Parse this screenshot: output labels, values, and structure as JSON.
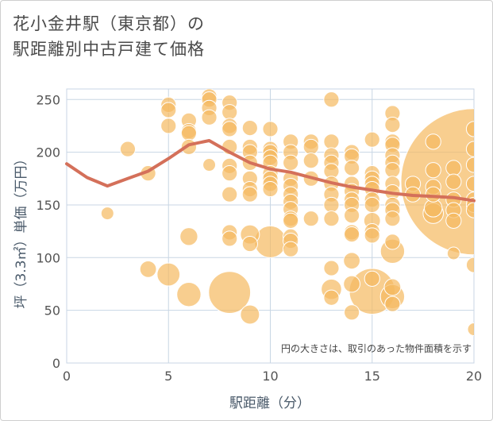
{
  "title_line1": "花小金井駅（東京都）の",
  "title_line2": "駅距離別中古戸建て価格",
  "chart_data": {
    "type": "scatter",
    "xlabel": "駅距離（分）",
    "ylabel": "坪（3.3㎡）単価（万円）",
    "annotation": "円の大きさは、取引のあった物件面積を示す",
    "xlim": [
      0,
      20
    ],
    "ylim": [
      0,
      260
    ],
    "xticks": [
      0,
      5,
      10,
      15,
      20
    ],
    "yticks": [
      0,
      50,
      100,
      150,
      200,
      250
    ],
    "grid": true,
    "colors": {
      "bubble": "#f5b960",
      "line": "#d4705a",
      "grid": "#c8d6e4"
    },
    "trend_line": {
      "x": [
        0,
        1,
        2,
        3,
        4,
        5,
        6,
        7,
        8,
        9,
        10,
        11,
        12,
        13,
        14,
        15,
        16,
        17,
        18,
        19,
        20
      ],
      "y": [
        189,
        176,
        168,
        175,
        182,
        194,
        207,
        211,
        200,
        190,
        184,
        181,
        176,
        171,
        167,
        164,
        161,
        159,
        158,
        157,
        154
      ]
    },
    "points": [
      {
        "x": 2,
        "y": 142,
        "s": 1
      },
      {
        "x": 3,
        "y": 203,
        "s": 1.2
      },
      {
        "x": 4,
        "y": 180,
        "s": 1.2
      },
      {
        "x": 4,
        "y": 89,
        "s": 1.3
      },
      {
        "x": 5,
        "y": 245,
        "s": 1.2
      },
      {
        "x": 5,
        "y": 240,
        "s": 1.2
      },
      {
        "x": 5,
        "y": 225,
        "s": 1.2
      },
      {
        "x": 5,
        "y": 84,
        "s": 1.8
      },
      {
        "x": 6,
        "y": 230,
        "s": 1.2
      },
      {
        "x": 6,
        "y": 220,
        "s": 1.2
      },
      {
        "x": 6,
        "y": 218,
        "s": 1.2
      },
      {
        "x": 6,
        "y": 205,
        "s": 1.2
      },
      {
        "x": 6,
        "y": 120,
        "s": 1.4
      },
      {
        "x": 6,
        "y": 65,
        "s": 1.9
      },
      {
        "x": 7,
        "y": 253,
        "s": 1.2
      },
      {
        "x": 7,
        "y": 250,
        "s": 1.2
      },
      {
        "x": 7,
        "y": 242,
        "s": 1.2
      },
      {
        "x": 7,
        "y": 233,
        "s": 1.2
      },
      {
        "x": 7,
        "y": 188,
        "s": 1
      },
      {
        "x": 8,
        "y": 247,
        "s": 1.2
      },
      {
        "x": 8,
        "y": 238,
        "s": 1.2
      },
      {
        "x": 8,
        "y": 225,
        "s": 1.2
      },
      {
        "x": 8,
        "y": 222,
        "s": 1.2
      },
      {
        "x": 8,
        "y": 205,
        "s": 1.2
      },
      {
        "x": 8,
        "y": 187,
        "s": 1.2
      },
      {
        "x": 8,
        "y": 180,
        "s": 1.2
      },
      {
        "x": 8,
        "y": 160,
        "s": 1.2
      },
      {
        "x": 8,
        "y": 124,
        "s": 1.2
      },
      {
        "x": 8,
        "y": 118,
        "s": 1.2
      },
      {
        "x": 8,
        "y": 67,
        "s": 3.3
      },
      {
        "x": 9,
        "y": 223,
        "s": 1.2
      },
      {
        "x": 9,
        "y": 205,
        "s": 1.2
      },
      {
        "x": 9,
        "y": 200,
        "s": 1.2
      },
      {
        "x": 9,
        "y": 190,
        "s": 1.2
      },
      {
        "x": 9,
        "y": 175,
        "s": 1.2
      },
      {
        "x": 9,
        "y": 165,
        "s": 1.2
      },
      {
        "x": 9,
        "y": 160,
        "s": 1.2
      },
      {
        "x": 9,
        "y": 122,
        "s": 1.5
      },
      {
        "x": 9,
        "y": 113,
        "s": 1.2
      },
      {
        "x": 9,
        "y": 46,
        "s": 1.5
      },
      {
        "x": 10,
        "y": 222,
        "s": 1.2
      },
      {
        "x": 10,
        "y": 203,
        "s": 1.2
      },
      {
        "x": 10,
        "y": 200,
        "s": 1.2
      },
      {
        "x": 10,
        "y": 195,
        "s": 1.2
      },
      {
        "x": 10,
        "y": 190,
        "s": 1.2
      },
      {
        "x": 10,
        "y": 180,
        "s": 1.2
      },
      {
        "x": 10,
        "y": 175,
        "s": 1.2
      },
      {
        "x": 10,
        "y": 170,
        "s": 1.2
      },
      {
        "x": 10,
        "y": 165,
        "s": 1.2
      },
      {
        "x": 10,
        "y": 115,
        "s": 2.5
      },
      {
        "x": 11,
        "y": 210,
        "s": 1.2
      },
      {
        "x": 11,
        "y": 200,
        "s": 1.2
      },
      {
        "x": 11,
        "y": 190,
        "s": 1.2
      },
      {
        "x": 11,
        "y": 175,
        "s": 1.2
      },
      {
        "x": 11,
        "y": 168,
        "s": 1.2
      },
      {
        "x": 11,
        "y": 160,
        "s": 1.2
      },
      {
        "x": 11,
        "y": 153,
        "s": 1.2
      },
      {
        "x": 11,
        "y": 146,
        "s": 1.2
      },
      {
        "x": 11,
        "y": 137,
        "s": 1.2
      },
      {
        "x": 11,
        "y": 135,
        "s": 1.2
      },
      {
        "x": 11,
        "y": 120,
        "s": 1.2
      },
      {
        "x": 11,
        "y": 116,
        "s": 1.2
      },
      {
        "x": 11,
        "y": 108,
        "s": 1.2
      },
      {
        "x": 12,
        "y": 210,
        "s": 1.2
      },
      {
        "x": 12,
        "y": 205,
        "s": 1.2
      },
      {
        "x": 12,
        "y": 192,
        "s": 1.2
      },
      {
        "x": 12,
        "y": 175,
        "s": 1.2
      },
      {
        "x": 12,
        "y": 137,
        "s": 1.2
      },
      {
        "x": 13,
        "y": 250,
        "s": 1.2
      },
      {
        "x": 13,
        "y": 210,
        "s": 1.2
      },
      {
        "x": 13,
        "y": 197,
        "s": 1.2
      },
      {
        "x": 13,
        "y": 190,
        "s": 1.2
      },
      {
        "x": 13,
        "y": 182,
        "s": 1.2
      },
      {
        "x": 13,
        "y": 170,
        "s": 1.2
      },
      {
        "x": 13,
        "y": 160,
        "s": 1.2
      },
      {
        "x": 13,
        "y": 150,
        "s": 1.2
      },
      {
        "x": 13,
        "y": 137,
        "s": 1.2
      },
      {
        "x": 13,
        "y": 90,
        "s": 1.2
      },
      {
        "x": 13,
        "y": 70,
        "s": 1.6
      },
      {
        "x": 13,
        "y": 62,
        "s": 1.2
      },
      {
        "x": 14,
        "y": 200,
        "s": 1.2
      },
      {
        "x": 14,
        "y": 196,
        "s": 1.2
      },
      {
        "x": 14,
        "y": 185,
        "s": 1.2
      },
      {
        "x": 14,
        "y": 170,
        "s": 1.2
      },
      {
        "x": 14,
        "y": 163,
        "s": 1.2
      },
      {
        "x": 14,
        "y": 155,
        "s": 1.2
      },
      {
        "x": 14,
        "y": 150,
        "s": 1.2
      },
      {
        "x": 14,
        "y": 140,
        "s": 1.2
      },
      {
        "x": 14,
        "y": 124,
        "s": 1.2
      },
      {
        "x": 14,
        "y": 122,
        "s": 1.2
      },
      {
        "x": 14,
        "y": 97,
        "s": 1.3
      },
      {
        "x": 14,
        "y": 75,
        "s": 1.3
      },
      {
        "x": 14,
        "y": 48,
        "s": 1.2
      },
      {
        "x": 15,
        "y": 212,
        "s": 1.2
      },
      {
        "x": 15,
        "y": 180,
        "s": 1.2
      },
      {
        "x": 15,
        "y": 175,
        "s": 1.2
      },
      {
        "x": 15,
        "y": 170,
        "s": 1.2
      },
      {
        "x": 15,
        "y": 165,
        "s": 1.2
      },
      {
        "x": 15,
        "y": 155,
        "s": 1.2
      },
      {
        "x": 15,
        "y": 150,
        "s": 1.2
      },
      {
        "x": 15,
        "y": 135,
        "s": 1.3
      },
      {
        "x": 15,
        "y": 125,
        "s": 1.2
      },
      {
        "x": 15,
        "y": 121,
        "s": 1.2
      },
      {
        "x": 15,
        "y": 80,
        "s": 1.2
      },
      {
        "x": 15,
        "y": 68,
        "s": 3.6
      },
      {
        "x": 16,
        "y": 237,
        "s": 1.2
      },
      {
        "x": 16,
        "y": 226,
        "s": 1.2
      },
      {
        "x": 16,
        "y": 210,
        "s": 1.2
      },
      {
        "x": 16,
        "y": 207,
        "s": 1.2
      },
      {
        "x": 16,
        "y": 197,
        "s": 1.2
      },
      {
        "x": 16,
        "y": 190,
        "s": 1.2
      },
      {
        "x": 16,
        "y": 183,
        "s": 1.2
      },
      {
        "x": 16,
        "y": 170,
        "s": 1.2
      },
      {
        "x": 16,
        "y": 162,
        "s": 1.2
      },
      {
        "x": 16,
        "y": 150,
        "s": 1.2
      },
      {
        "x": 16,
        "y": 145,
        "s": 1.2
      },
      {
        "x": 16,
        "y": 137,
        "s": 1.2
      },
      {
        "x": 16,
        "y": 115,
        "s": 1.2
      },
      {
        "x": 16,
        "y": 106,
        "s": 1.9
      },
      {
        "x": 16,
        "y": 72,
        "s": 1.3
      },
      {
        "x": 16,
        "y": 63,
        "s": 1.9
      },
      {
        "x": 16,
        "y": 56,
        "s": 1.2
      },
      {
        "x": 17,
        "y": 170,
        "s": 1.2
      },
      {
        "x": 17,
        "y": 160,
        "s": 1.2
      },
      {
        "x": 18,
        "y": 210,
        "s": 1.2
      },
      {
        "x": 18,
        "y": 183,
        "s": 1.2
      },
      {
        "x": 18,
        "y": 167,
        "s": 1.2
      },
      {
        "x": 18,
        "y": 160,
        "s": 1.2
      },
      {
        "x": 18,
        "y": 147,
        "s": 1.4
      },
      {
        "x": 18,
        "y": 142,
        "s": 1.6
      },
      {
        "x": 19,
        "y": 185,
        "s": 1.2
      },
      {
        "x": 19,
        "y": 172,
        "s": 1.2
      },
      {
        "x": 19,
        "y": 155,
        "s": 1.2
      },
      {
        "x": 19,
        "y": 145,
        "s": 1.2
      },
      {
        "x": 19,
        "y": 135,
        "s": 1.2
      },
      {
        "x": 19,
        "y": 104,
        "s": 1
      },
      {
        "x": 20,
        "y": 222,
        "s": 1.2
      },
      {
        "x": 20,
        "y": 203,
        "s": 1.2
      },
      {
        "x": 20,
        "y": 188,
        "s": 1.2
      },
      {
        "x": 20,
        "y": 170,
        "s": 1.2
      },
      {
        "x": 20,
        "y": 155,
        "s": 1.2
      },
      {
        "x": 20,
        "y": 150,
        "s": 1.2
      },
      {
        "x": 20,
        "y": 145,
        "s": 1.2
      },
      {
        "x": 20,
        "y": 93,
        "s": 1.2
      },
      {
        "x": 20,
        "y": 32,
        "s": 1
      },
      {
        "x": 20,
        "y": 172,
        "s": 11.5
      }
    ]
  }
}
